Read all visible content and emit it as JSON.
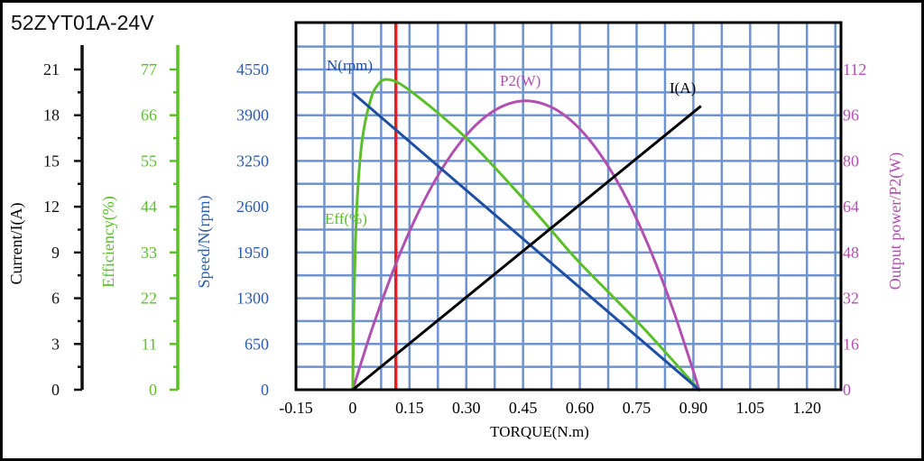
{
  "title": "52ZYT01A-24V",
  "colors": {
    "current": "#000000",
    "efficiency": "#5bbf2a",
    "speed": "#1f4fa3",
    "power": "#b050b0",
    "grid": "#6f93cf",
    "marker": "#ee1c1c",
    "speed_tick_text": "#2a5cb0"
  },
  "chart_data": {
    "type": "line",
    "title": "52ZYT01A-24V",
    "xlabel": "TORQUE(N.m)",
    "xlim": [
      -0.15,
      1.29
    ],
    "x_ticks": [
      "-0.15",
      "0",
      "0.15",
      "0.30",
      "0.45",
      "0.60",
      "0.75",
      "0.90",
      "1.05",
      "1.20"
    ],
    "x_tick_values": [
      -0.15,
      0,
      0.15,
      0.3,
      0.45,
      0.6,
      0.75,
      0.9,
      1.05,
      1.2
    ],
    "grid": true,
    "marker_line": {
      "x": 0.114
    },
    "axes": [
      {
        "key": "current",
        "label": "Current/I(A)",
        "ylim": [
          0,
          21
        ],
        "ticks": [
          "0",
          "3",
          "6",
          "9",
          "12",
          "15",
          "18",
          "21"
        ]
      },
      {
        "key": "efficiency",
        "label": "Efficiency(%)",
        "ylim": [
          0,
          77
        ],
        "ticks": [
          "0",
          "11",
          "22",
          "33",
          "44",
          "55",
          "66",
          "77"
        ]
      },
      {
        "key": "speed",
        "label": "Speed/N(rpm)",
        "ylim": [
          0,
          4550
        ],
        "ticks": [
          "0",
          "650",
          "1300",
          "1950",
          "2600",
          "3250",
          "3900",
          "4550"
        ]
      },
      {
        "key": "power",
        "label": "Output power/P2(W)",
        "ylim": [
          0,
          112
        ],
        "ticks": [
          "0",
          "16",
          "32",
          "48",
          "64",
          "80",
          "96",
          "112"
        ]
      }
    ],
    "series": [
      {
        "name": "I(A)",
        "axis": "current",
        "x": [
          0,
          0.92
        ],
        "y": [
          0,
          18.6
        ]
      },
      {
        "name": "Eff(%)",
        "axis": "efficiency",
        "x": [
          0,
          0.003,
          0.007,
          0.012,
          0.02,
          0.03,
          0.045,
          0.06,
          0.09,
          0.15,
          0.3,
          0.45,
          0.52,
          0.6,
          0.76,
          0.9,
          0.915
        ],
        "y": [
          0,
          20,
          35,
          46,
          56,
          63,
          69,
          72.5,
          74.6,
          72,
          60.5,
          46,
          38.8,
          30.5,
          15.6,
          1.5,
          0
        ]
      },
      {
        "name": "N(rpm)",
        "axis": "speed",
        "x": [
          0,
          0.915
        ],
        "y": [
          4217,
          0
        ]
      },
      {
        "name": "P2(W)",
        "axis": "power",
        "x": [
          0,
          0.05,
          0.1,
          0.15,
          0.2,
          0.25,
          0.3,
          0.35,
          0.4,
          0.45,
          0.5,
          0.55,
          0.6,
          0.65,
          0.7,
          0.75,
          0.8,
          0.85,
          0.9,
          0.915
        ],
        "y": [
          0,
          20.9,
          39.3,
          55.4,
          69.0,
          80.2,
          89.0,
          95.4,
          99.4,
          101.0,
          100.1,
          96.9,
          91.2,
          83.1,
          72.6,
          59.7,
          44.4,
          26.6,
          6.5,
          0
        ]
      }
    ]
  }
}
